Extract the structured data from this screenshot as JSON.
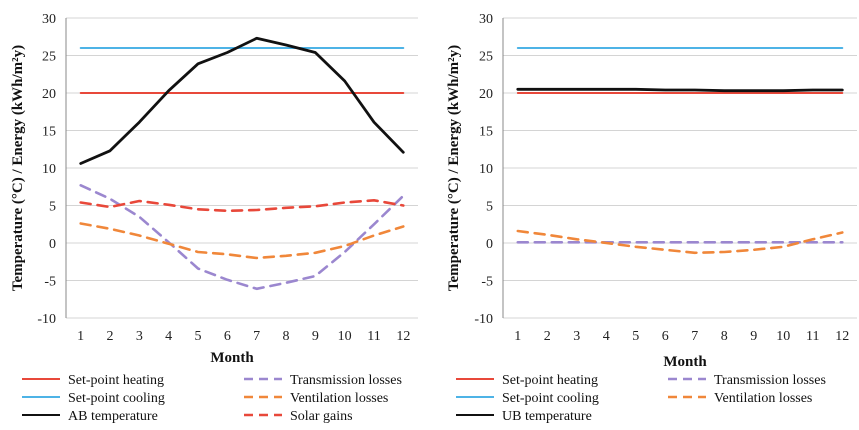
{
  "chart_data": [
    {
      "type": "line",
      "xlabel": "Month",
      "ylabel": "Temperature (°C) / Energy (kWh/m²y)",
      "ylim": [
        -10,
        30
      ],
      "yticks": [
        -10,
        -5,
        0,
        5,
        10,
        15,
        20,
        25,
        30
      ],
      "x": [
        1,
        2,
        3,
        4,
        5,
        6,
        7,
        8,
        9,
        10,
        11,
        12
      ],
      "grid": "horizontal",
      "series": [
        {
          "name": "Set-point heating",
          "color": "#e8483a",
          "dash": "solid",
          "values": [
            20,
            20,
            20,
            20,
            20,
            20,
            20,
            20,
            20,
            20,
            20,
            20
          ]
        },
        {
          "name": "Set-point cooling",
          "color": "#4db3e6",
          "dash": "solid",
          "values": [
            26,
            26,
            26,
            26,
            26,
            26,
            26,
            26,
            26,
            26,
            26,
            26
          ]
        },
        {
          "name": "AB temperature",
          "color": "#111111",
          "dash": "solid",
          "values": [
            10.6,
            12.3,
            16.1,
            20.3,
            23.9,
            25.4,
            27.3,
            26.4,
            25.4,
            21.6,
            16.1,
            12.1
          ]
        },
        {
          "name": "Transmission losses",
          "color": "#9b87cf",
          "dash": "dashed",
          "values": [
            7.7,
            5.9,
            3.5,
            0.1,
            -3.4,
            -4.9,
            -6.1,
            -5.3,
            -4.4,
            -1.2,
            2.5,
            6.3
          ]
        },
        {
          "name": "Ventilation losses",
          "color": "#f0873a",
          "dash": "dashed",
          "values": [
            2.6,
            1.9,
            1.0,
            -0.1,
            -1.2,
            -1.5,
            -2.0,
            -1.7,
            -1.3,
            -0.4,
            1.0,
            2.2
          ]
        },
        {
          "name": "Solar gains",
          "color": "#e8483a",
          "dash": "dashed",
          "values": [
            5.4,
            4.8,
            5.6,
            5.1,
            4.5,
            4.3,
            4.4,
            4.7,
            4.9,
            5.4,
            5.7,
            5.0
          ]
        }
      ],
      "legend": [
        [
          "Set-point heating",
          "Transmission losses"
        ],
        [
          "Set-point cooling",
          "Ventilation losses"
        ],
        [
          "AB temperature",
          "Solar gains"
        ]
      ]
    },
    {
      "type": "line",
      "xlabel": "Month",
      "ylabel": "Temperature (°C) / Energy (kWh/m²y)",
      "ylim": [
        -10,
        30
      ],
      "yticks": [
        -10,
        -5,
        0,
        5,
        10,
        15,
        20,
        25,
        30
      ],
      "x": [
        1,
        2,
        3,
        4,
        5,
        6,
        7,
        8,
        9,
        10,
        11,
        12
      ],
      "grid": "horizontal",
      "series": [
        {
          "name": "Set-point heating",
          "color": "#e8483a",
          "dash": "solid",
          "values": [
            20,
            20,
            20,
            20,
            20,
            20,
            20,
            20,
            20,
            20,
            20,
            20
          ]
        },
        {
          "name": "Set-point cooling",
          "color": "#4db3e6",
          "dash": "solid",
          "values": [
            26,
            26,
            26,
            26,
            26,
            26,
            26,
            26,
            26,
            26,
            26,
            26
          ]
        },
        {
          "name": "UB temperature",
          "color": "#111111",
          "dash": "solid",
          "values": [
            20.5,
            20.5,
            20.5,
            20.5,
            20.5,
            20.4,
            20.4,
            20.3,
            20.3,
            20.3,
            20.4,
            20.4
          ]
        },
        {
          "name": "Transmission losses",
          "color": "#9b87cf",
          "dash": "dashed",
          "values": [
            0.1,
            0.1,
            0.1,
            0.1,
            0.1,
            0.1,
            0.1,
            0.1,
            0.1,
            0.1,
            0.1,
            0.1
          ]
        },
        {
          "name": "Ventilation losses",
          "color": "#f0873a",
          "dash": "dashed",
          "values": [
            1.6,
            1.1,
            0.5,
            0.0,
            -0.5,
            -0.9,
            -1.3,
            -1.2,
            -0.9,
            -0.5,
            0.5,
            1.4
          ]
        }
      ],
      "legend": [
        [
          "Set-point heating",
          "Transmission losses"
        ],
        [
          "Set-point cooling",
          "Ventilation losses"
        ],
        [
          "UB temperature",
          ""
        ]
      ]
    }
  ]
}
